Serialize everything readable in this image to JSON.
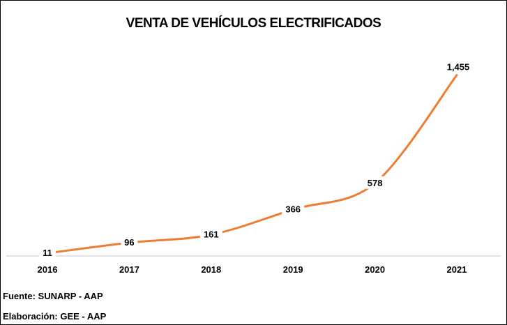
{
  "chart_data": {
    "type": "line",
    "title": "VENTA DE VEHÍCULOS ELECTRIFICADOS",
    "categories": [
      "2016",
      "2017",
      "2018",
      "2019",
      "2020",
      "2021"
    ],
    "values": [
      11,
      96,
      161,
      366,
      578,
      1455
    ],
    "data_labels": [
      "11",
      "96",
      "161",
      "366",
      "578",
      "1,455"
    ],
    "xlabel": "",
    "ylabel": "",
    "ylim": [
      0,
      1600
    ],
    "grid": false,
    "smooth": true,
    "line_color": "#ED7D31",
    "axis_color": "#D9D9D9"
  },
  "footer": {
    "source": "Fuente: SUNARP - AAP",
    "elaboration": "Elaboración: GEE - AAP"
  }
}
